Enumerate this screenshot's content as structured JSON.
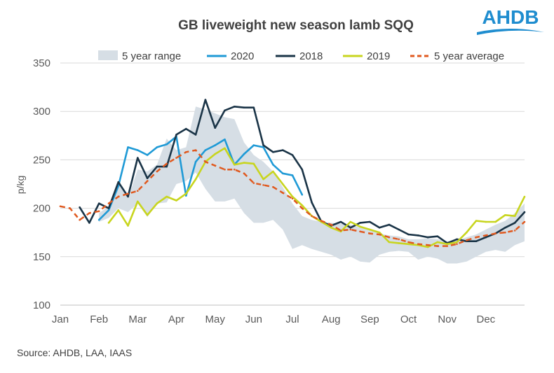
{
  "logo": {
    "text": "AHDB",
    "color": "#1f8dcf"
  },
  "source": "Source: AHDB, LAA, IAAS",
  "chart_data": {
    "type": "line",
    "title": "GB liveweight new season lamb SQQ",
    "xlabel": "",
    "ylabel": "p/kg",
    "ylim": [
      100,
      350
    ],
    "xlim": [
      0,
      48
    ],
    "yticks": [
      100,
      150,
      200,
      250,
      300,
      350
    ],
    "categories": [
      "Jan",
      "Feb",
      "Mar",
      "Apr",
      "May",
      "Jun",
      "Jul",
      "Aug",
      "Sep",
      "Oct",
      "Nov",
      "Dec"
    ],
    "grid": true,
    "legend_position": "top",
    "range": {
      "name": "5 year range",
      "color": "#d6dee5",
      "x": [
        4,
        5,
        6,
        7,
        8,
        9,
        10,
        11,
        12,
        13,
        14,
        15,
        16,
        17,
        18,
        19,
        20,
        21,
        22,
        23,
        24,
        25,
        26,
        27,
        28,
        29,
        30,
        31,
        32,
        33,
        34,
        35,
        36,
        37,
        38,
        39,
        40,
        41,
        42,
        43,
        44,
        45,
        46,
        47,
        48
      ],
      "low": [
        186,
        190,
        200,
        196,
        205,
        191,
        205,
        206,
        225,
        228,
        237,
        220,
        207,
        207,
        210,
        195,
        185,
        185,
        188,
        178,
        158,
        162,
        158,
        155,
        152,
        147,
        150,
        145,
        144,
        152,
        155,
        156,
        155,
        147,
        150,
        148,
        143,
        143,
        145,
        150,
        155,
        157,
        155,
        162,
        166
      ],
      "high": [
        195,
        202,
        226,
        210,
        240,
        238,
        245,
        272,
        260,
        263,
        305,
        302,
        298,
        294,
        292,
        268,
        255,
        248,
        238,
        222,
        205,
        192,
        188,
        186,
        185,
        184,
        183,
        180,
        178,
        174,
        172,
        171,
        168,
        168,
        169,
        168,
        166,
        167,
        170,
        173,
        178,
        183,
        187,
        195,
        205
      ]
    },
    "series": [
      {
        "name": "2020",
        "color": "#1f9ad6",
        "dash": false,
        "x": [
          4,
          5,
          6,
          7,
          8,
          9,
          10,
          11,
          12,
          13,
          14,
          15,
          16,
          17,
          18,
          19,
          20,
          21,
          22,
          23,
          24,
          25
        ],
        "values": [
          188,
          198,
          223,
          263,
          260,
          255,
          263,
          266,
          274,
          213,
          248,
          260,
          265,
          271,
          245,
          256,
          265,
          263,
          245,
          236,
          234,
          214
        ]
      },
      {
        "name": "2018",
        "color": "#1a3447",
        "dash": false,
        "x": [
          2,
          3,
          4,
          5,
          6,
          7,
          8,
          9,
          10,
          11,
          12,
          13,
          14,
          15,
          16,
          17,
          18,
          19,
          20,
          21,
          22,
          23,
          24,
          25,
          26,
          27,
          28,
          29,
          30,
          31,
          32,
          33,
          34,
          35,
          36,
          37,
          38,
          39,
          40,
          41,
          42,
          43,
          44,
          45,
          46,
          47,
          48
        ],
        "values": [
          201,
          185,
          205,
          200,
          227,
          212,
          252,
          231,
          243,
          243,
          276,
          282,
          276,
          312,
          283,
          301,
          305,
          304,
          304,
          265,
          258,
          260,
          255,
          240,
          206,
          186,
          182,
          186,
          180,
          185,
          186,
          180,
          183,
          178,
          173,
          172,
          170,
          171,
          164,
          168,
          166,
          166,
          170,
          174,
          180,
          185,
          196
        ]
      },
      {
        "name": "2019",
        "color": "#c8d51f",
        "dash": false,
        "x": [
          5,
          6,
          7,
          8,
          9,
          10,
          11,
          12,
          13,
          14,
          15,
          16,
          17,
          18,
          19,
          20,
          21,
          22,
          23,
          24,
          25,
          26,
          27,
          28,
          29,
          30,
          31,
          32,
          33,
          34,
          35,
          36,
          37,
          38,
          39,
          40,
          41,
          42,
          43,
          44,
          45,
          46,
          47,
          48
        ],
        "values": [
          185,
          198,
          182,
          207,
          193,
          205,
          212,
          208,
          215,
          230,
          248,
          256,
          262,
          245,
          247,
          246,
          230,
          238,
          225,
          212,
          203,
          192,
          186,
          180,
          176,
          186,
          181,
          178,
          175,
          165,
          164,
          163,
          162,
          160,
          165,
          163,
          165,
          175,
          187,
          186,
          186,
          193,
          192,
          212
        ]
      },
      {
        "name": "5 year average",
        "color": "#e0591f",
        "dash": true,
        "x": [
          0,
          1,
          2,
          3,
          4,
          5,
          6,
          7,
          8,
          9,
          10,
          11,
          12,
          13,
          14,
          15,
          16,
          17,
          18,
          19,
          20,
          21,
          22,
          23,
          24,
          25,
          26,
          27,
          28,
          29,
          30,
          31,
          32,
          33,
          34,
          35,
          36,
          37,
          38,
          39,
          40,
          41,
          42,
          43,
          44,
          45,
          46,
          47,
          48
        ],
        "values": [
          202,
          200,
          188,
          195,
          197,
          205,
          212,
          215,
          218,
          228,
          238,
          246,
          252,
          258,
          260,
          248,
          244,
          240,
          240,
          236,
          226,
          224,
          222,
          216,
          210,
          200,
          192,
          187,
          183,
          177,
          178,
          176,
          174,
          173,
          170,
          168,
          165,
          163,
          162,
          161,
          161,
          163,
          167,
          170,
          172,
          174,
          175,
          177,
          186
        ]
      }
    ]
  }
}
